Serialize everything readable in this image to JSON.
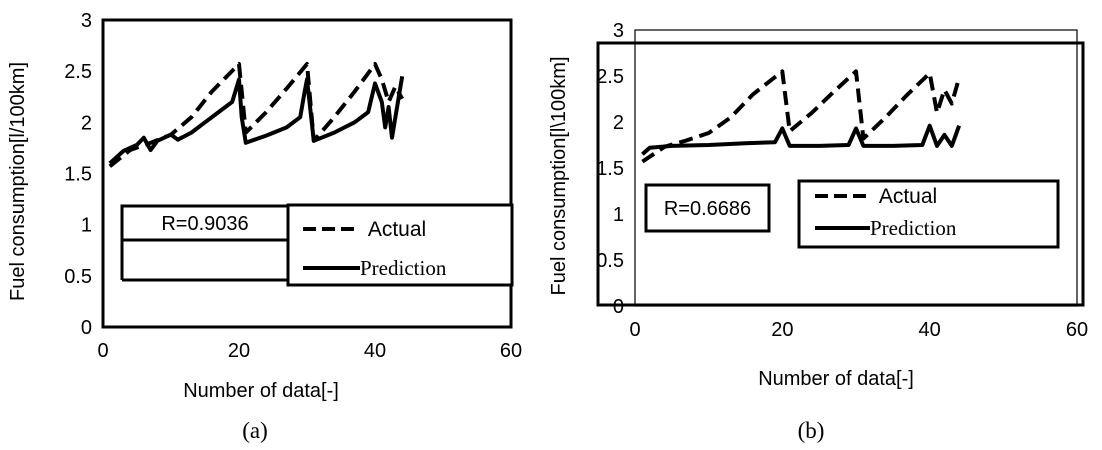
{
  "chart_data": [
    {
      "type": "line",
      "title": "",
      "caption": "(a)",
      "xlabel": "Number of data[-]",
      "ylabel": "Fuel consumption[l/100km]",
      "xlim": [
        0,
        60
      ],
      "ylim": [
        0,
        3
      ],
      "xticks": [
        "0",
        "20",
        "40",
        "60"
      ],
      "yticks": [
        "0",
        "0.5",
        "1",
        "1.5",
        "2",
        "2.5",
        "3"
      ],
      "grid": false,
      "legend": "bottom-right",
      "annotation": "R=0.9036",
      "series": [
        {
          "name": "Actual",
          "style": "dashed",
          "x": [
            1,
            4,
            7,
            10,
            13,
            16,
            20,
            21,
            24,
            27,
            30,
            31,
            34,
            37,
            40,
            41,
            42,
            43,
            44
          ],
          "values": [
            1.57,
            1.73,
            1.8,
            1.88,
            2.05,
            2.3,
            2.57,
            1.9,
            2.1,
            2.33,
            2.57,
            1.82,
            2.05,
            2.3,
            2.57,
            2.42,
            2.2,
            2.35,
            2.23
          ]
        },
        {
          "name": "Prediction",
          "style": "solid",
          "x": [
            1,
            3,
            5,
            6,
            7,
            8,
            10,
            11,
            13,
            15,
            17,
            19,
            20,
            20.4,
            21,
            24,
            27,
            29,
            29.6,
            30,
            31,
            34,
            37,
            39,
            40,
            41,
            41.5,
            42,
            42.5,
            43,
            44
          ],
          "values": [
            1.6,
            1.72,
            1.78,
            1.85,
            1.73,
            1.82,
            1.88,
            1.83,
            1.9,
            2.0,
            2.1,
            2.2,
            2.42,
            2.05,
            1.8,
            1.87,
            1.95,
            2.05,
            2.28,
            2.42,
            1.82,
            1.9,
            2.0,
            2.1,
            2.38,
            2.2,
            1.95,
            2.15,
            1.85,
            2.05,
            2.45
          ]
        }
      ]
    },
    {
      "type": "line",
      "title": "",
      "caption": "(b)",
      "xlabel": "Number of data[-]",
      "ylabel": "Fuel consumption[l\\100km]",
      "xlim": [
        0,
        60
      ],
      "ylim": [
        0,
        3
      ],
      "xticks": [
        "0",
        "20",
        "40",
        "60"
      ],
      "yticks": [
        "0",
        "0.5",
        "1",
        "1.5",
        "2",
        "2.5",
        "3"
      ],
      "grid": false,
      "legend": "bottom-right",
      "annotation": "R=0.6686",
      "series": [
        {
          "name": "Actual",
          "style": "dashed",
          "x": [
            1,
            4,
            7,
            10,
            13,
            16,
            20,
            21,
            24,
            27,
            30,
            31,
            34,
            37,
            40,
            41,
            42,
            43,
            44
          ],
          "values": [
            1.57,
            1.73,
            1.8,
            1.88,
            2.05,
            2.3,
            2.55,
            1.9,
            2.1,
            2.33,
            2.55,
            1.82,
            2.05,
            2.3,
            2.53,
            2.1,
            2.35,
            2.2,
            2.48
          ]
        },
        {
          "name": "Prediction",
          "style": "solid",
          "x": [
            1,
            2,
            5,
            10,
            15,
            19,
            20,
            21,
            22,
            25,
            29,
            30,
            31,
            35,
            39,
            40,
            41,
            42,
            43,
            44
          ],
          "values": [
            1.65,
            1.72,
            1.74,
            1.75,
            1.77,
            1.78,
            1.93,
            1.74,
            1.74,
            1.74,
            1.75,
            1.93,
            1.74,
            1.74,
            1.75,
            1.96,
            1.74,
            1.86,
            1.74,
            1.96
          ]
        }
      ]
    }
  ]
}
